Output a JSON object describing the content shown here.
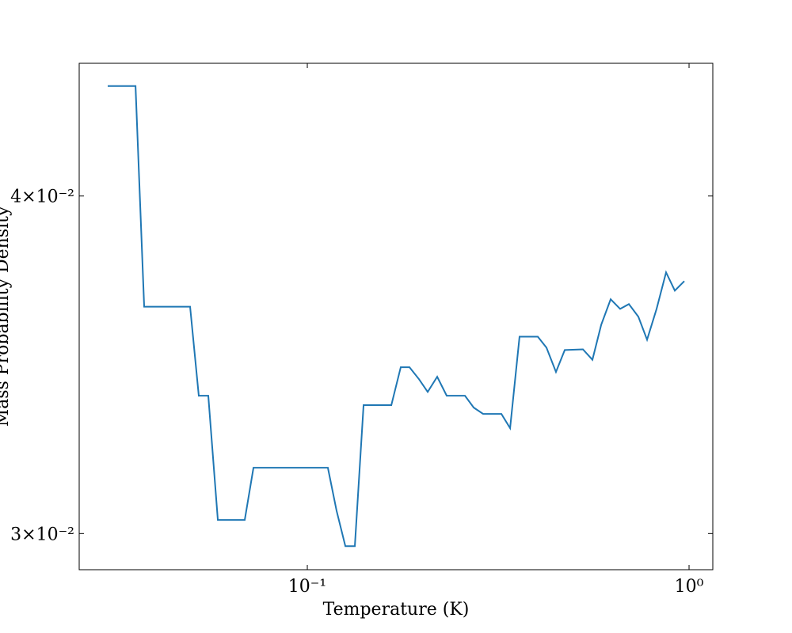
{
  "chart_data": {
    "type": "line",
    "xlabel": "Temperature  (K)",
    "ylabel": "Mass Probability Density",
    "xscale": "log",
    "yscale": "log",
    "xlim": [
      0.02526,
      1.154
    ],
    "ylim": [
      0.02909,
      0.04479
    ],
    "xticks": [
      {
        "value": 0.1,
        "label": "10⁻¹"
      },
      {
        "value": 1,
        "label": "10⁰"
      }
    ],
    "yticks": [
      {
        "value": 0.03,
        "label": "3×10⁻²"
      },
      {
        "value": 0.04,
        "label": "4×10⁻²"
      }
    ],
    "x": [
      0.03,
      0.03548,
      0.03738,
      0.04931,
      0.05196,
      0.05503,
      0.05829,
      0.06856,
      0.07227,
      0.1132,
      0.1193,
      0.1258,
      0.1332,
      0.1404,
      0.166,
      0.1757,
      0.1852,
      0.1961,
      0.2067,
      0.2189,
      0.2318,
      0.2588,
      0.2728,
      0.2888,
      0.3224,
      0.3398,
      0.3597,
      0.4016,
      0.4232,
      0.4481,
      0.4725,
      0.5272,
      0.5583,
      0.5886,
      0.6232,
      0.6599,
      0.6956,
      0.7365,
      0.7763,
      0.8221,
      0.8706,
      0.9178,
      0.9718
    ],
    "series": [
      {
        "color": "#1f77b4",
        "values": [
          0.04393,
          0.04393,
          0.0364,
          0.0364,
          0.03374,
          0.03374,
          0.03035,
          0.03035,
          0.03173,
          0.03173,
          0.03059,
          0.02968,
          0.02968,
          0.03347,
          0.03347,
          0.03457,
          0.03457,
          0.03422,
          0.03385,
          0.03429,
          0.03374,
          0.03374,
          0.0334,
          0.03322,
          0.03322,
          0.03282,
          0.03548,
          0.03548,
          0.03515,
          0.03443,
          0.03508,
          0.0351,
          0.03479,
          0.03584,
          0.03663,
          0.03633,
          0.03648,
          0.03609,
          0.03539,
          0.03633,
          0.03748,
          0.0369,
          0.0372
        ]
      }
    ]
  }
}
